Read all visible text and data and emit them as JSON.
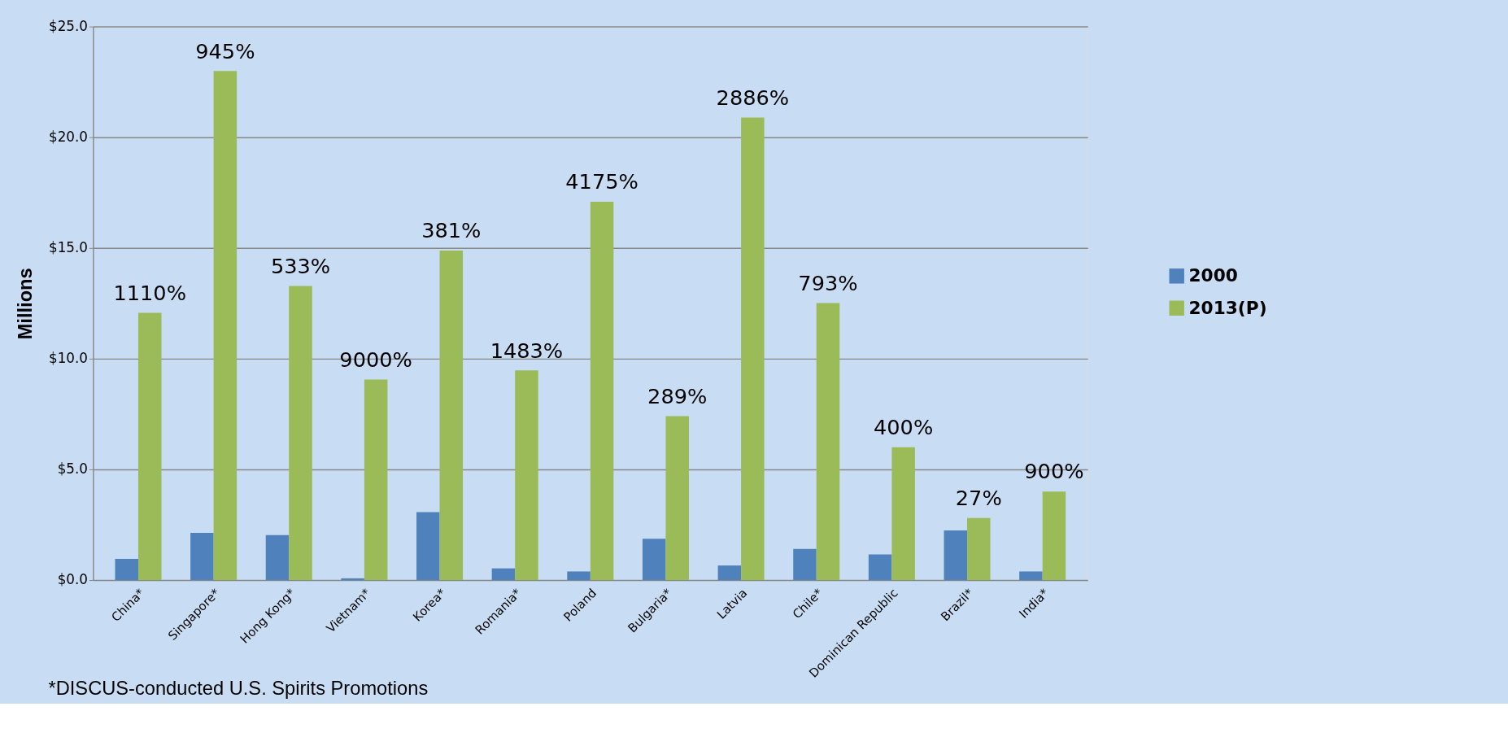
{
  "chart_data": {
    "type": "bar",
    "ylabel": "Millions",
    "categories": [
      "China*",
      "Singapore*",
      "Hong Kong*",
      "Vietnam*",
      "Korea*",
      "Romania*",
      "Poland",
      "Bulgaria*",
      "Latvia",
      "Chile*",
      "Dominican Republic",
      "Brazil*",
      "India*"
    ],
    "series": [
      {
        "name": "2000",
        "color": "#4f81bd",
        "values": [
          0.96,
          2.13,
          2.03,
          0.08,
          3.07,
          0.53,
          0.39,
          1.87,
          0.66,
          1.41,
          1.16,
          2.24,
          0.39
        ]
      },
      {
        "name": "2013(P)",
        "color": "#9bbb59",
        "values": [
          12.07,
          22.99,
          13.28,
          9.06,
          14.88,
          9.47,
          17.09,
          7.41,
          20.89,
          12.51,
          6.0,
          2.8,
          4.0
        ]
      }
    ],
    "ylim": [
      0,
      25
    ],
    "yticks": [
      {
        "value": 0,
        "label": "$0.0"
      },
      {
        "value": 5,
        "label": "$5.0"
      },
      {
        "value": 10,
        "label": "$10.0"
      },
      {
        "value": 15,
        "label": "$15.0"
      },
      {
        "value": 20,
        "label": "$20.0"
      },
      {
        "value": 25,
        "label": "$25.0"
      }
    ],
    "grid": "y",
    "legend": "right",
    "annotations": [
      {
        "text": "1110%",
        "x": "China*",
        "y": 12.07
      },
      {
        "text": "945%",
        "x": "Singapore*",
        "y": 22.99
      },
      {
        "text": "533%",
        "x": "Hong Kong*",
        "y": 13.28
      },
      {
        "text": "9000%",
        "x": "Vietnam*",
        "y": 9.06
      },
      {
        "text": "381%",
        "x": "Korea*",
        "y": 14.88
      },
      {
        "text": "1483%",
        "x": "Romania*",
        "y": 9.47
      },
      {
        "text": "4175%",
        "x": "Poland",
        "y": 17.09
      },
      {
        "text": "289%",
        "x": "Bulgaria*",
        "y": 7.41
      },
      {
        "text": "2886%",
        "x": "Latvia",
        "y": 20.89
      },
      {
        "text": "793%",
        "x": "Chile*",
        "y": 12.51
      },
      {
        "text": "400%",
        "x": "Dominican Republic",
        "y": 6.0
      },
      {
        "text": "27%",
        "x": "Brazil*",
        "y": 2.8
      },
      {
        "text": "900%",
        "x": "India*",
        "y": 4.0
      },
      "*DISCUS-conducted U.S. Spirits Promotions"
    ]
  }
}
